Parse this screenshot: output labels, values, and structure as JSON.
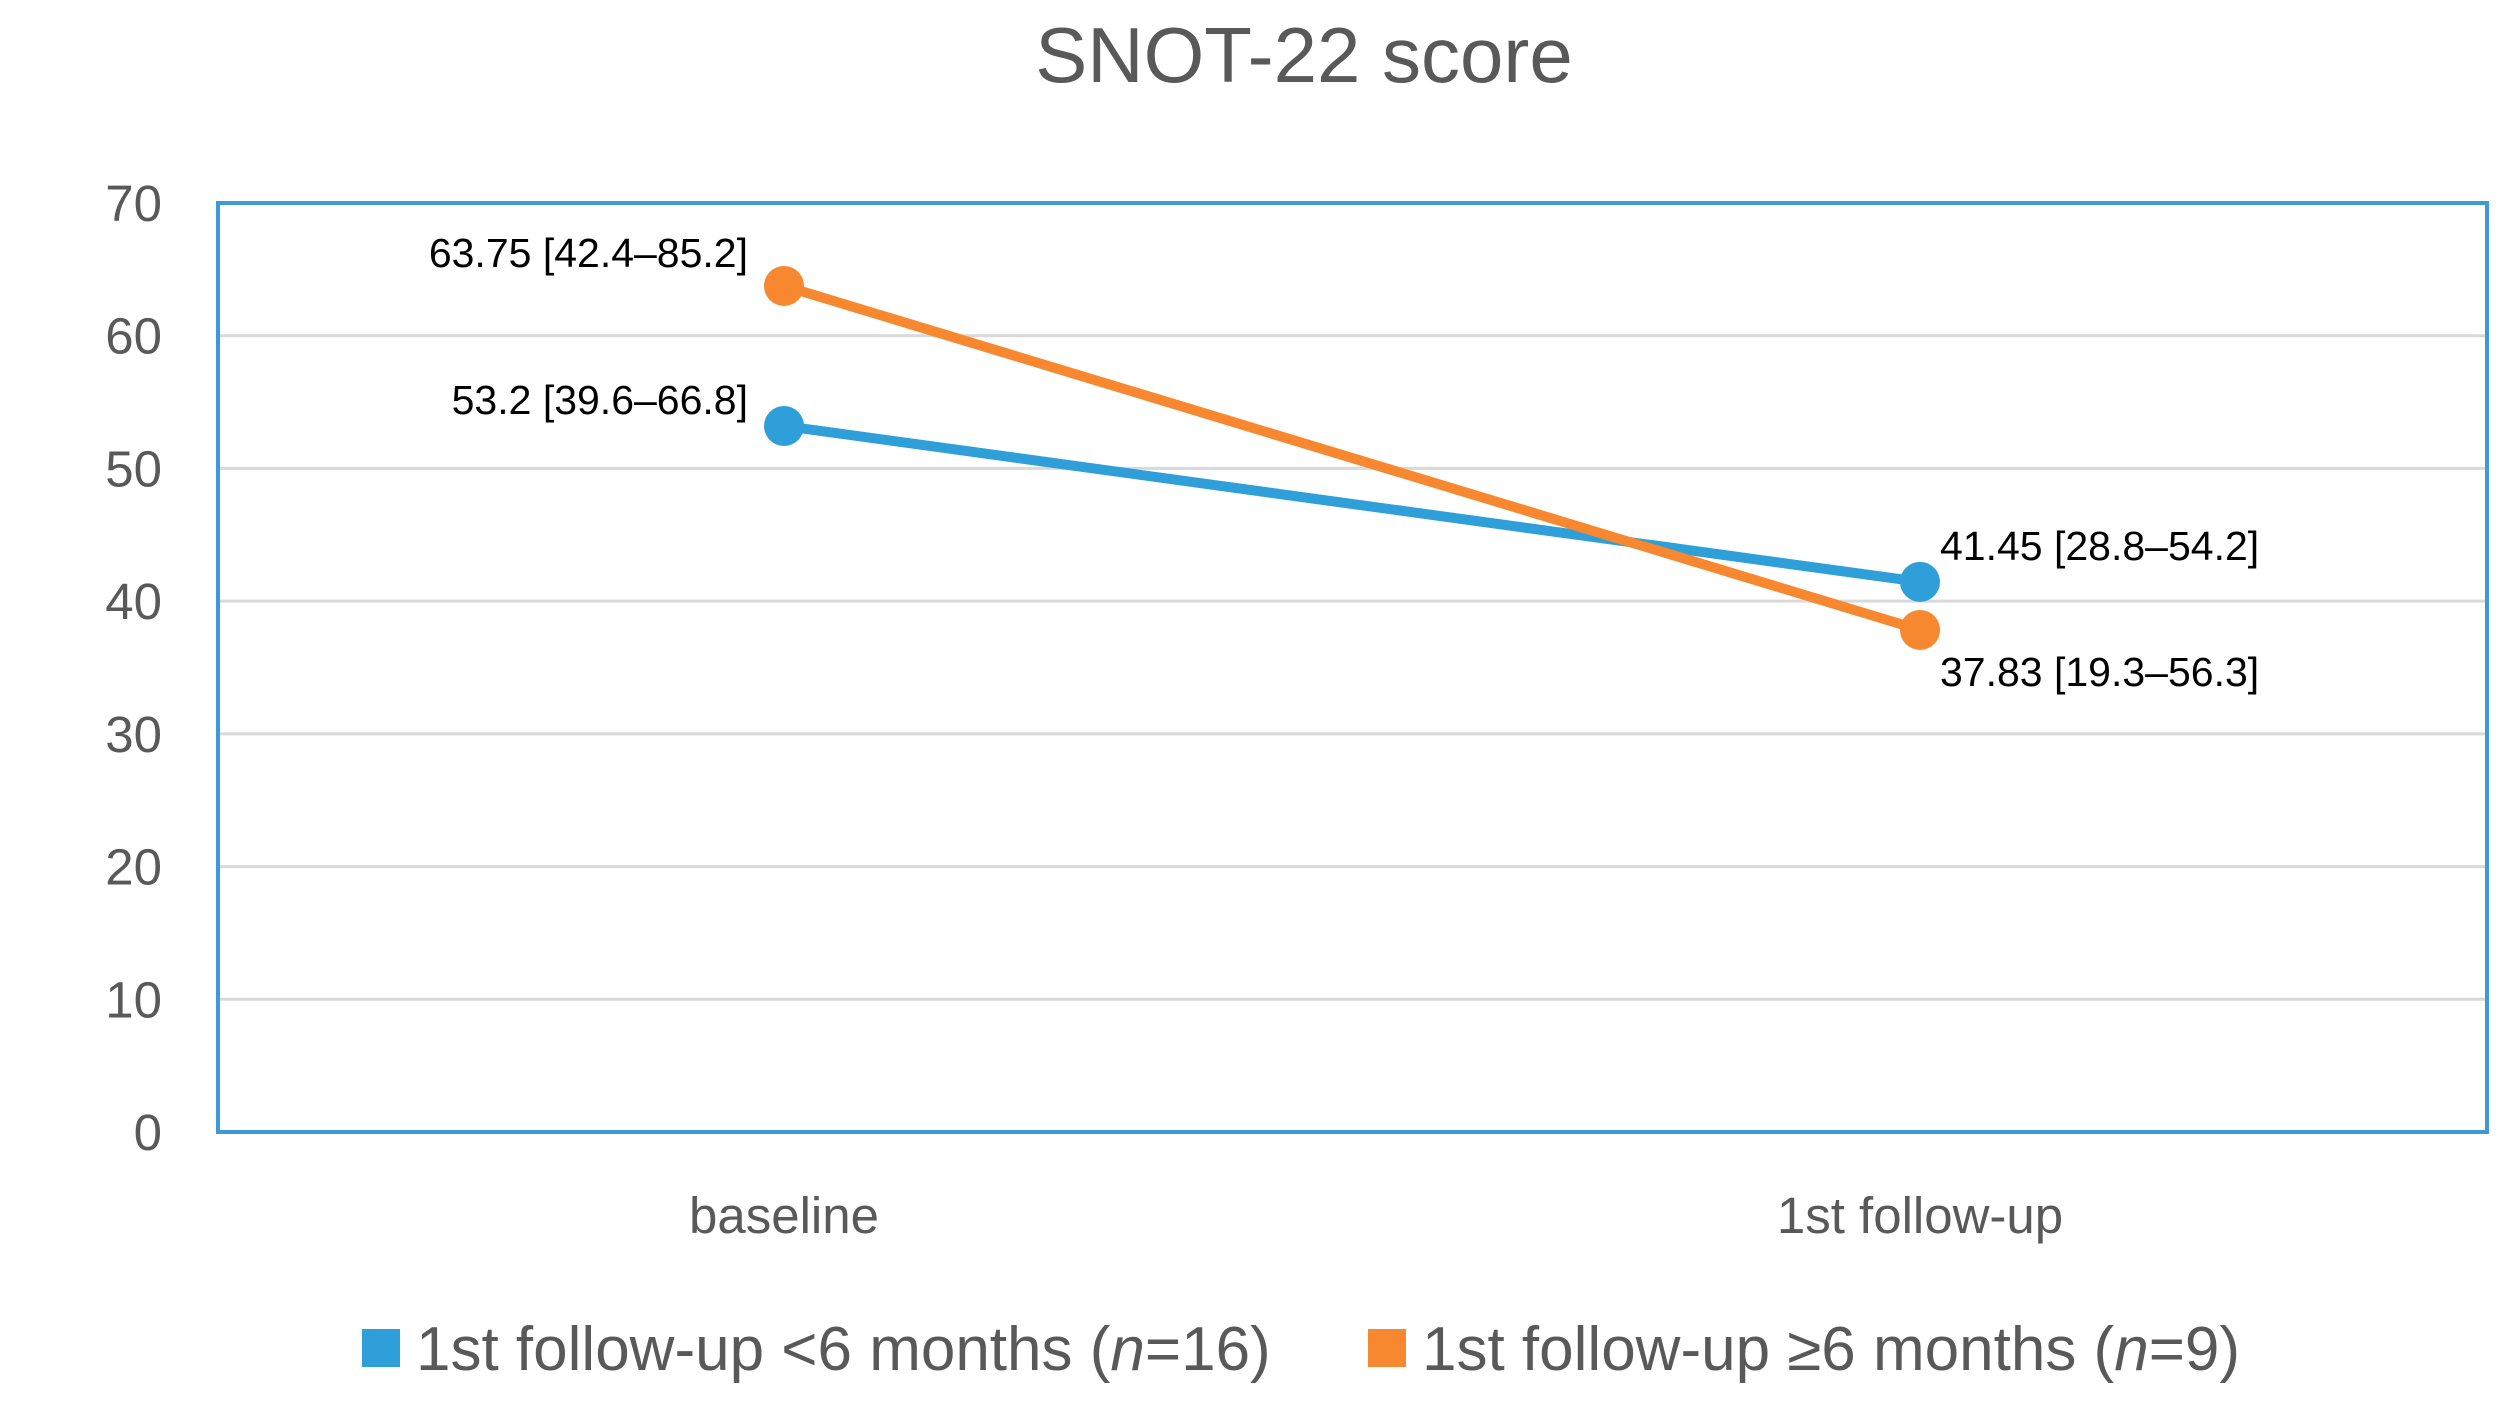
{
  "chart_data": {
    "type": "line",
    "title": "SNOT-22 score",
    "categories": [
      "baseline",
      "1st follow-up"
    ],
    "ylim": [
      0,
      70
    ],
    "yticks": [
      0,
      10,
      20,
      30,
      40,
      50,
      60,
      70
    ],
    "grid": true,
    "legend_position": "bottom",
    "series": [
      {
        "name": "1st follow-up <6 months (n=16)",
        "name_prefix": "1st follow-up <6 months (",
        "name_n": "n",
        "name_suffix": "=16)",
        "color": "#2e9fd8",
        "values": [
          53.2,
          41.45
        ],
        "labels": [
          "53.2 [39.6–66.8]",
          "41.45 [28.8–54.2]"
        ]
      },
      {
        "name": "1st follow-up ≥6 months (n=9)",
        "name_prefix": "1st follow-up ≥6 months (",
        "name_n": "n",
        "name_suffix": "=9)",
        "color": "#f7882f",
        "values": [
          63.75,
          37.83
        ],
        "labels": [
          "63.75 [42.4–85.2]",
          "37.83 [19.3–56.3]"
        ]
      }
    ],
    "frame_color": "#3d9ad6"
  }
}
